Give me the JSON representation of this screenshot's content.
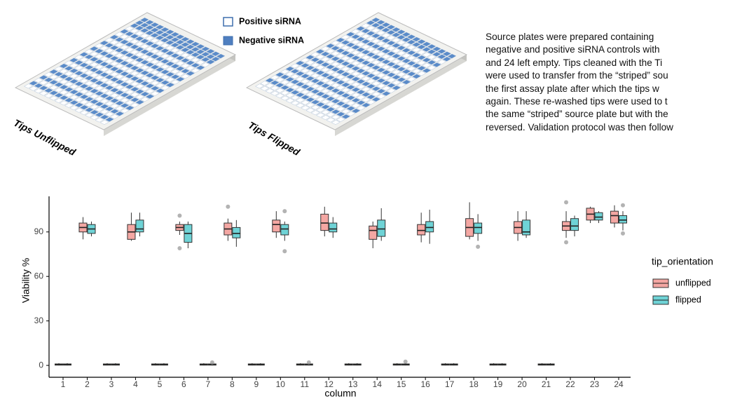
{
  "figure": {
    "plate_legend": {
      "positive": "Positive siRNA",
      "negative": "Negative siRNA"
    },
    "plate_labels": {
      "unflipped": "Tips Unflipped",
      "flipped": "Tips Flipped"
    },
    "paragraph": [
      "Source plates were prepared containing",
      "negative and positive siRNA controls with",
      "and 24 left empty. Tips cleaned with the Ti",
      "were used to transfer from the “striped” sou",
      "the first assay plate after which the tips w",
      "again.  These re-washed tips were used to t",
      "the same “striped” source plate but with the",
      "reversed. Validation protocol was then follow"
    ]
  },
  "chart_data": {
    "type": "box",
    "x_label": "column",
    "y_label": "Viability %",
    "legend_title": "tip_orientation",
    "categories": [
      "1",
      "2",
      "3",
      "4",
      "5",
      "6",
      "7",
      "8",
      "9",
      "10",
      "11",
      "12",
      "13",
      "14",
      "15",
      "16",
      "17",
      "18",
      "19",
      "20",
      "21",
      "22",
      "23",
      "24"
    ],
    "ylim": [
      -8,
      114
    ],
    "yticks": [
      0,
      30,
      60,
      90
    ],
    "series": [
      {
        "name": "unflipped",
        "color": "#f4a7a3",
        "boxes": [
          {
            "min": 0,
            "q1": 0.2,
            "median": 0.5,
            "q3": 1,
            "max": 1.5
          },
          {
            "min": 85,
            "q1": 90,
            "median": 93,
            "q3": 96,
            "max": 100
          },
          {
            "min": 0,
            "q1": 0.2,
            "median": 0.5,
            "q3": 1,
            "max": 1.5
          },
          {
            "min": 84,
            "q1": 85,
            "median": 90,
            "q3": 95,
            "max": 103
          },
          {
            "min": 0,
            "q1": 0.2,
            "median": 0.5,
            "q3": 1,
            "max": 1.5
          },
          {
            "min": 88,
            "q1": 91,
            "median": 93,
            "q3": 95,
            "max": 97,
            "outliers": [
              79,
              101
            ]
          },
          {
            "min": 0,
            "q1": 0.2,
            "median": 0.5,
            "q3": 1,
            "max": 1.5
          },
          {
            "min": 84,
            "q1": 88,
            "median": 92,
            "q3": 96,
            "max": 99,
            "outliers": [
              107
            ]
          },
          {
            "min": 0,
            "q1": 0.2,
            "median": 0.5,
            "q3": 1,
            "max": 1.5
          },
          {
            "min": 86,
            "q1": 90,
            "median": 95,
            "q3": 98,
            "max": 104
          },
          {
            "min": 0,
            "q1": 0.2,
            "median": 0.5,
            "q3": 1,
            "max": 1.5
          },
          {
            "min": 87,
            "q1": 91,
            "median": 96,
            "q3": 102,
            "max": 107
          },
          {
            "min": 0,
            "q1": 0.2,
            "median": 0.5,
            "q3": 1,
            "max": 1.5
          },
          {
            "min": 79,
            "q1": 85,
            "median": 91,
            "q3": 94,
            "max": 97
          },
          {
            "min": 0,
            "q1": 0.2,
            "median": 0.5,
            "q3": 1,
            "max": 1.5
          },
          {
            "min": 83,
            "q1": 88,
            "median": 91,
            "q3": 95,
            "max": 103
          },
          {
            "min": 0,
            "q1": 0.2,
            "median": 0.5,
            "q3": 1,
            "max": 1.5
          },
          {
            "min": 85,
            "q1": 87,
            "median": 93,
            "q3": 99,
            "max": 110
          },
          {
            "min": 0,
            "q1": 0.2,
            "median": 0.5,
            "q3": 1,
            "max": 1.5
          },
          {
            "min": 84,
            "q1": 89,
            "median": 93,
            "q3": 97,
            "max": 104
          },
          {
            "min": 0,
            "q1": 0.2,
            "median": 0.5,
            "q3": 1,
            "max": 1.5
          },
          {
            "min": 86,
            "q1": 91,
            "median": 94,
            "q3": 97,
            "max": 104,
            "outliers": [
              83,
              110
            ]
          },
          {
            "min": 96,
            "q1": 98,
            "median": 102,
            "q3": 106,
            "max": 107
          },
          {
            "min": 93,
            "q1": 96,
            "median": 101,
            "q3": 104,
            "max": 108
          }
        ]
      },
      {
        "name": "flipped",
        "color": "#6fd3d6",
        "boxes": [
          {
            "min": 0,
            "q1": 0.2,
            "median": 0.5,
            "q3": 1,
            "max": 1.5
          },
          {
            "min": 87,
            "q1": 89,
            "median": 92,
            "q3": 95,
            "max": 97
          },
          {
            "min": 0,
            "q1": 0.2,
            "median": 0.5,
            "q3": 1,
            "max": 1.5
          },
          {
            "min": 87,
            "q1": 90,
            "median": 92,
            "q3": 98,
            "max": 103
          },
          {
            "min": 0,
            "q1": 0.2,
            "median": 0.5,
            "q3": 1,
            "max": 1.5
          },
          {
            "min": 79,
            "q1": 83,
            "median": 89,
            "q3": 95,
            "max": 97
          },
          {
            "min": 0,
            "q1": 0.2,
            "median": 0.5,
            "q3": 1,
            "max": 1.5,
            "outliers": [
              2
            ]
          },
          {
            "min": 80,
            "q1": 86,
            "median": 89,
            "q3": 93,
            "max": 98
          },
          {
            "min": 0,
            "q1": 0.2,
            "median": 0.5,
            "q3": 1,
            "max": 1.5
          },
          {
            "min": 84,
            "q1": 88,
            "median": 92,
            "q3": 95,
            "max": 97,
            "outliers": [
              77,
              104
            ]
          },
          {
            "min": 0,
            "q1": 0.2,
            "median": 0.5,
            "q3": 1,
            "max": 1.5,
            "outliers": [
              2
            ]
          },
          {
            "min": 86,
            "q1": 90,
            "median": 92,
            "q3": 96,
            "max": 100
          },
          {
            "min": 0,
            "q1": 0.2,
            "median": 0.5,
            "q3": 1,
            "max": 1.5
          },
          {
            "min": 84,
            "q1": 87,
            "median": 92,
            "q3": 98,
            "max": 106
          },
          {
            "min": 0,
            "q1": 0.2,
            "median": 0.5,
            "q3": 1,
            "max": 1.5,
            "outliers": [
              2.5
            ]
          },
          {
            "min": 82,
            "q1": 90,
            "median": 93,
            "q3": 97,
            "max": 105
          },
          {
            "min": 0,
            "q1": 0.2,
            "median": 0.5,
            "q3": 1,
            "max": 1.5
          },
          {
            "min": 84,
            "q1": 89,
            "median": 93,
            "q3": 96,
            "max": 102,
            "outliers": [
              80
            ]
          },
          {
            "min": 0,
            "q1": 0.2,
            "median": 0.5,
            "q3": 1,
            "max": 1.5
          },
          {
            "min": 86,
            "q1": 88,
            "median": 90,
            "q3": 98,
            "max": 104
          },
          {
            "min": 0,
            "q1": 0.2,
            "median": 0.5,
            "q3": 1,
            "max": 1.5
          },
          {
            "min": 87,
            "q1": 91,
            "median": 94,
            "q3": 99,
            "max": 101
          },
          {
            "min": 96,
            "q1": 98,
            "median": 100,
            "q3": 103,
            "max": 104
          },
          {
            "min": 91,
            "q1": 96,
            "median": 98,
            "q3": 101,
            "max": 104,
            "outliers": [
              89,
              108
            ]
          }
        ]
      }
    ]
  }
}
